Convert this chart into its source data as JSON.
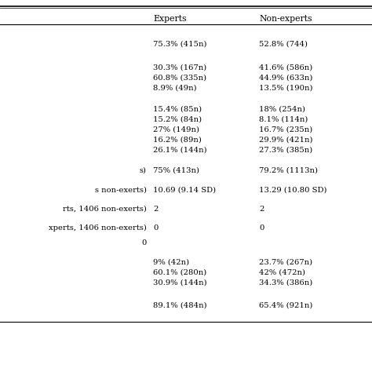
{
  "header": [
    "Experts",
    "Non-experts"
  ],
  "rows": [
    [
      "",
      "75.3% (415n)",
      "52.8% (744)"
    ],
    [
      "",
      "30.3% (167n)",
      "41.6% (586n)"
    ],
    [
      "",
      "60.8% (335n)",
      "44.9% (633n)"
    ],
    [
      "",
      "8.9% (49n)",
      "13.5% (190n)"
    ],
    [
      "",
      "15.4% (85n)",
      "18% (254n)"
    ],
    [
      "",
      "15.2% (84n)",
      "8.1% (114n)"
    ],
    [
      "",
      "27% (149n)",
      "16.7% (235n)"
    ],
    [
      "",
      "16.2% (89n)",
      "29.9% (421n)"
    ],
    [
      "",
      "26.1% (144n)",
      "27.3% (385n)"
    ],
    [
      "s)",
      "75% (413n)",
      "79.2% (1113n)"
    ],
    [
      "s non-exerts)",
      "10.69 (9.14 SD)",
      "13.29 (10.80 SD)"
    ],
    [
      "rts, 1406 non-exerts)",
      "2",
      "2"
    ],
    [
      "xperts, 1406 non-exerts)",
      "0",
      "0"
    ],
    [
      "0",
      "",
      ""
    ],
    [
      "",
      "9% (42n)",
      "23.7% (267n)"
    ],
    [
      "",
      "60.1% (280n)",
      "42% (472n)"
    ],
    [
      "",
      "30.9% (144n)",
      "34.3% (386n)"
    ],
    [
      "",
      "89.1% (484n)",
      "65.4% (921n)"
    ]
  ],
  "background_color": "#ffffff",
  "text_color": "#000000",
  "font_size": 7.2,
  "header_font_size": 7.8,
  "line_color": "#000000"
}
